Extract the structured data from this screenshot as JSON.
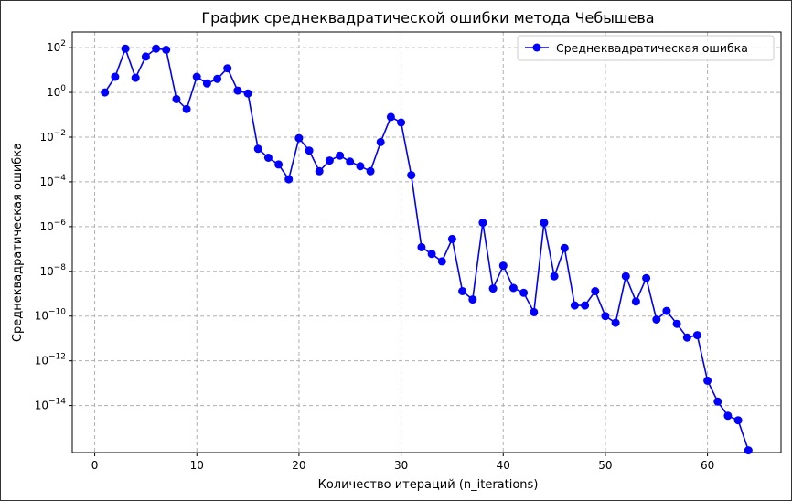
{
  "chart_data": {
    "type": "line",
    "title": "График среднеквадратической ошибки метода Чебышева",
    "xlabel": "Количество итераций (n_iterations)",
    "ylabel": "Среднеквадратическая ошибка",
    "yscale": "log",
    "xlim": [
      -2.2,
      67.2
    ],
    "ylim_exp": [
      -16.1,
      2.7
    ],
    "x_ticks": [
      0,
      10,
      20,
      30,
      40,
      50,
      60
    ],
    "y_tick_exponents": [
      2,
      0,
      -2,
      -4,
      -6,
      -8,
      -10,
      -12,
      -14
    ],
    "grid": true,
    "legend_position": "top-right",
    "series": [
      {
        "name": "Среднеквадратическая ошибка",
        "color": "#0000ff",
        "marker": "circle",
        "x": [
          1,
          2,
          3,
          4,
          5,
          6,
          7,
          8,
          9,
          10,
          11,
          12,
          13,
          14,
          15,
          16,
          17,
          18,
          19,
          20,
          21,
          22,
          23,
          24,
          25,
          26,
          27,
          28,
          29,
          30,
          31,
          32,
          33,
          34,
          35,
          36,
          37,
          38,
          39,
          40,
          41,
          42,
          43,
          44,
          45,
          46,
          47,
          48,
          49,
          50,
          51,
          52,
          53,
          54,
          55,
          56,
          57,
          58,
          59,
          60,
          61,
          62,
          63,
          64
        ],
        "y": [
          1,
          5,
          90,
          4.5,
          40,
          90,
          80,
          0.5,
          0.18,
          5,
          2.5,
          4,
          12,
          1.2,
          0.9,
          0.003,
          0.0012,
          0.0006,
          0.00013,
          0.009,
          0.0025,
          0.0003,
          0.0009,
          0.0015,
          0.0008,
          0.0005,
          0.0003,
          0.006,
          0.08,
          0.045,
          0.0002,
          1.2e-07,
          6e-08,
          2.8e-08,
          2.8e-07,
          1.3e-09,
          5.5e-10,
          1.5e-06,
          1.7e-09,
          1.8e-08,
          1.8e-09,
          1.1e-09,
          1.5e-10,
          1.5e-06,
          6e-09,
          1.1e-07,
          3e-10,
          3e-10,
          1.3e-09,
          1e-10,
          5e-11,
          6e-09,
          4.5e-10,
          5e-09,
          7e-11,
          1.7e-10,
          4.5e-11,
          1.1e-11,
          1.4e-11,
          1.3e-13,
          1.5e-14,
          3.5e-15,
          2.2e-15,
          1e-16
        ]
      }
    ]
  }
}
